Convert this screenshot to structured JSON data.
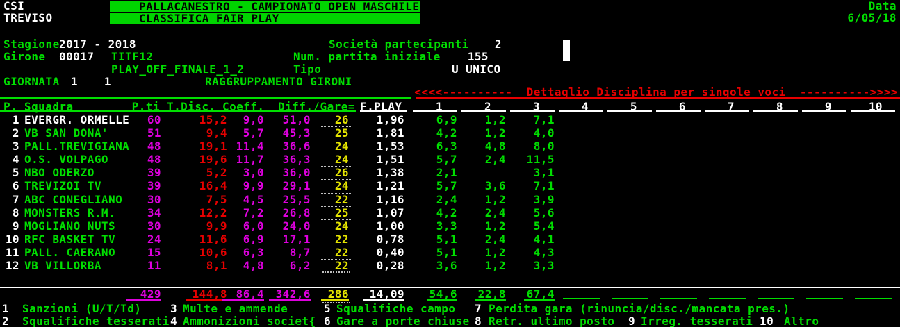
{
  "colors": {
    "green": "#00dd00",
    "white": "#ffffff",
    "magenta": "#dd00dd",
    "red": "#e60000",
    "yellow": "#e3e300",
    "banner_bg": "#00d400",
    "background": "#000000"
  },
  "header": {
    "org_line1": "CSI",
    "org_line2": "TREVISO",
    "banner_line1": "PALLACANESTRO - CAMPIONATO OPEN MASCHILE",
    "banner_line2": "CLASSIFICA FAIR PLAY",
    "date_label": "Data",
    "date_value": "6/05/18"
  },
  "info": {
    "stagione_label": "Stagione",
    "stagione_value": "2017 - 2018",
    "societa_label": "Società partecipanti",
    "societa_value": "2",
    "girone_label": "Girone",
    "girone_code": "00017",
    "girone_sigla": "TITF12",
    "num_partita_label": "Num. partita iniziale",
    "num_partita_value": "155",
    "fase": "PLAY_OFF_FINALE_1_2",
    "tipo_label": "Tipo",
    "tipo_value": "U UNICO",
    "giornata_label": "GIORNATA",
    "giornata_value1": "1",
    "giornata_value2": "1",
    "raggruppamento": "RAGGRUPPAMENTO GIRONI"
  },
  "detail_banner": "<<<<----------  Dettaglio Disciplina per singole voci  ---------->>>>",
  "table": {
    "headers": {
      "pos": "P.",
      "squadra": "Squadra",
      "pti": "P.ti",
      "tdisc": "T.Disc.",
      "coeff": "Coeff.",
      "diff_gare": "Diff./Gare=",
      "fplay": "F.PLAY"
    },
    "detail_cols": [
      "1",
      "2",
      "3",
      "4",
      "5",
      "6",
      "7",
      "8",
      "9",
      "10"
    ],
    "rows": [
      {
        "rank": "1",
        "team": "EVERGR. ORMELLE",
        "pti": "60",
        "tdisc": "15,2",
        "coeff": "9,0",
        "diff": "51,0",
        "gare": "26",
        "fplay": "1,96",
        "d1": "6,9",
        "d2": "1,2",
        "d3": "7,1",
        "highlight": true
      },
      {
        "rank": "2",
        "team": "VB SAN DONA'",
        "pti": "51",
        "tdisc": "9,4",
        "coeff": "5,7",
        "diff": "45,3",
        "gare": "25",
        "fplay": "1,81",
        "d1": "4,2",
        "d2": "1,2",
        "d3": "4,0",
        "highlight": false
      },
      {
        "rank": "3",
        "team": "PALL.TREVIGIANA",
        "pti": "48",
        "tdisc": "19,1",
        "coeff": "11,4",
        "diff": "36,6",
        "gare": "24",
        "fplay": "1,53",
        "d1": "6,3",
        "d2": "4,8",
        "d3": "8,0",
        "highlight": false
      },
      {
        "rank": "4",
        "team": "O.S. VOLPAGO",
        "pti": "48",
        "tdisc": "19,6",
        "coeff": "11,7",
        "diff": "36,3",
        "gare": "24",
        "fplay": "1,51",
        "d1": "5,7",
        "d2": "2,4",
        "d3": "11,5",
        "highlight": false
      },
      {
        "rank": "5",
        "team": "NBO ODERZO",
        "pti": "39",
        "tdisc": "5,2",
        "coeff": "3,0",
        "diff": "36,0",
        "gare": "26",
        "fplay": "1,38",
        "d1": "2,1",
        "d2": "",
        "d3": "3,1",
        "highlight": false
      },
      {
        "rank": "6",
        "team": "TREVIZOI TV",
        "pti": "39",
        "tdisc": "16,4",
        "coeff": "9,9",
        "diff": "29,1",
        "gare": "24",
        "fplay": "1,21",
        "d1": "5,7",
        "d2": "3,6",
        "d3": "7,1",
        "highlight": false
      },
      {
        "rank": "7",
        "team": "ABC CONEGLIANO",
        "pti": "30",
        "tdisc": "7,5",
        "coeff": "4,5",
        "diff": "25,5",
        "gare": "22",
        "fplay": "1,16",
        "d1": "2,4",
        "d2": "1,2",
        "d3": "3,9",
        "highlight": false
      },
      {
        "rank": "8",
        "team": "MONSTERS R.M.",
        "pti": "34",
        "tdisc": "12,2",
        "coeff": "7,2",
        "diff": "26,8",
        "gare": "25",
        "fplay": "1,07",
        "d1": "4,2",
        "d2": "2,4",
        "d3": "5,6",
        "highlight": false
      },
      {
        "rank": "9",
        "team": "MOGLIANO NUTS",
        "pti": "30",
        "tdisc": "9,9",
        "coeff": "6,0",
        "diff": "24,0",
        "gare": "24",
        "fplay": "1,00",
        "d1": "3,3",
        "d2": "1,2",
        "d3": "5,4",
        "highlight": false
      },
      {
        "rank": "10",
        "team": "RFC BASKET TV",
        "pti": "24",
        "tdisc": "11,6",
        "coeff": "6,9",
        "diff": "17,1",
        "gare": "22",
        "fplay": "0,78",
        "d1": "5,1",
        "d2": "2,4",
        "d3": "4,1",
        "highlight": false
      },
      {
        "rank": "11",
        "team": "PALL. CAERANO",
        "pti": "15",
        "tdisc": "10,6",
        "coeff": "6,3",
        "diff": "8,7",
        "gare": "22",
        "fplay": "0,40",
        "d1": "5,1",
        "d2": "1,2",
        "d3": "4,3",
        "highlight": false
      },
      {
        "rank": "12",
        "team": "VB VILLORBA",
        "pti": "11",
        "tdisc": "8,1",
        "coeff": "4,8",
        "diff": "6,2",
        "gare": "22",
        "fplay": "0,28",
        "d1": "3,6",
        "d2": "1,2",
        "d3": "3,3",
        "highlight": false
      }
    ],
    "totals": {
      "pti": "429",
      "tdisc": "144,8",
      "coeff": "86,4",
      "diff": "342,6",
      "gare": "286",
      "fplay": "14,09",
      "d1": "54,6",
      "d2": "22,8",
      "d3": "67,4"
    }
  },
  "legend": {
    "row1": [
      {
        "n": "1",
        "t": "Sanzioni (U/T/Td)"
      },
      {
        "n": "3",
        "t": "Multe e ammende"
      },
      {
        "n": "5",
        "t": "Squalifiche campo"
      },
      {
        "n": "7",
        "t": "Perdita gara (rinuncia/disc./mancata pres.)"
      }
    ],
    "row2": [
      {
        "n": "2",
        "t": "Squalifiche tesserati"
      },
      {
        "n": "4",
        "t": "Ammonizioni societ{"
      },
      {
        "n": "6",
        "t": "Gare a porte chiuse"
      },
      {
        "n": "8",
        "t": "Retr. ultimo posto"
      },
      {
        "n": "9",
        "t": "Irreg. tesserati"
      },
      {
        "n": "10",
        "t": "Altro"
      }
    ]
  }
}
